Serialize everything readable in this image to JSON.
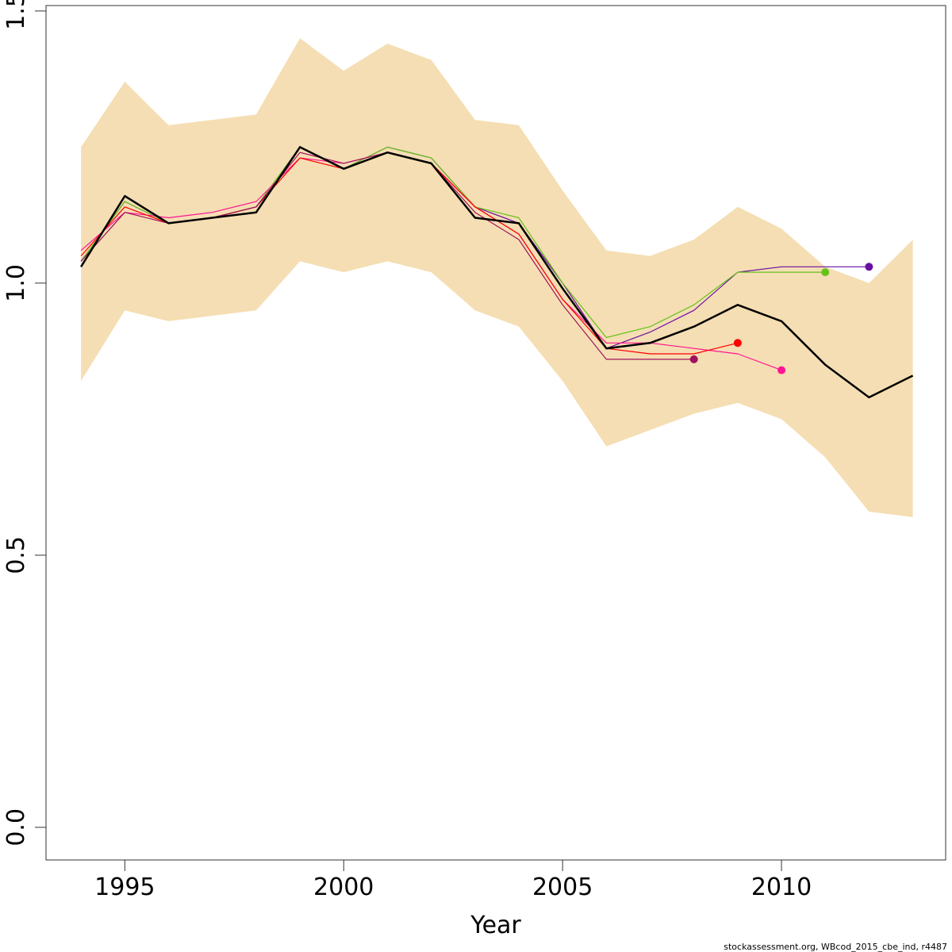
{
  "chart_data": {
    "type": "line",
    "title": "",
    "xlabel": "Year",
    "ylabel": "",
    "xlim": [
      1993.2,
      2013.75
    ],
    "ylim": [
      -0.06,
      1.51
    ],
    "x_ticks": [
      1995,
      2000,
      2005,
      2010
    ],
    "x_tick_labels": [
      "1995",
      "2000",
      "2005",
      "2010"
    ],
    "y_ticks": [
      0.0,
      0.5,
      1.0,
      1.5
    ],
    "y_tick_labels": [
      "0.0",
      "0.5",
      "1.0",
      "1.5"
    ],
    "grid": false,
    "legend": "none",
    "band": {
      "color": "#f5deb3",
      "x": [
        1994,
        1995,
        1996,
        1997,
        1998,
        1999,
        2000,
        2001,
        2002,
        2003,
        2004,
        2005,
        2006,
        2007,
        2008,
        2009,
        2010,
        2011,
        2012,
        2013
      ],
      "upper": [
        1.25,
        1.37,
        1.29,
        1.3,
        1.31,
        1.45,
        1.39,
        1.44,
        1.41,
        1.3,
        1.29,
        1.17,
        1.06,
        1.05,
        1.08,
        1.14,
        1.1,
        1.03,
        1.0,
        1.08
      ],
      "lower": [
        0.82,
        0.95,
        0.93,
        0.94,
        0.95,
        1.04,
        1.02,
        1.04,
        1.02,
        0.95,
        0.92,
        0.82,
        0.7,
        0.73,
        0.76,
        0.78,
        0.75,
        0.68,
        0.58,
        0.57
      ]
    },
    "series": [
      {
        "color": "#000000",
        "width": 2.5,
        "x": [
          1994,
          1995,
          1996,
          1997,
          1998,
          1999,
          2000,
          2001,
          2002,
          2003,
          2004,
          2005,
          2006,
          2007,
          2008,
          2009,
          2010,
          2011,
          2012,
          2013
        ],
        "values": [
          1.03,
          1.16,
          1.11,
          1.12,
          1.13,
          1.25,
          1.21,
          1.24,
          1.22,
          1.12,
          1.11,
          0.99,
          0.88,
          0.89,
          0.92,
          0.96,
          0.93,
          0.85,
          0.79,
          0.83
        ],
        "end_point": false
      },
      {
        "color": "#6b0fa3",
        "width": 1.2,
        "x": [
          1994,
          1995,
          1996,
          1997,
          1998,
          1999,
          2000,
          2001,
          2002,
          2003,
          2004,
          2005,
          2006,
          2007,
          2008,
          2009,
          2010,
          2011,
          2012
        ],
        "values": [
          1.04,
          1.15,
          1.11,
          1.12,
          1.14,
          1.25,
          1.21,
          1.25,
          1.23,
          1.14,
          1.11,
          1.0,
          0.88,
          0.91,
          0.95,
          1.02,
          1.03,
          1.03,
          1.03
        ],
        "end_point": true
      },
      {
        "color": "#66c21a",
        "width": 1.2,
        "x": [
          1994,
          1995,
          1996,
          1997,
          1998,
          1999,
          2000,
          2001,
          2002,
          2003,
          2004,
          2005,
          2006,
          2007,
          2008,
          2009,
          2010,
          2011
        ],
        "values": [
          1.04,
          1.15,
          1.11,
          1.12,
          1.14,
          1.25,
          1.21,
          1.25,
          1.23,
          1.14,
          1.12,
          1.0,
          0.9,
          0.92,
          0.96,
          1.02,
          1.02,
          1.02
        ],
        "end_point": true
      },
      {
        "color": "#ff1493",
        "width": 1.2,
        "x": [
          1994,
          1995,
          1996,
          1997,
          1998,
          1999,
          2000,
          2001,
          2002,
          2003,
          2004,
          2005,
          2006,
          2007,
          2008,
          2009,
          2010
        ],
        "values": [
          1.06,
          1.13,
          1.12,
          1.13,
          1.15,
          1.23,
          1.22,
          1.24,
          1.22,
          1.14,
          1.09,
          0.97,
          0.89,
          0.89,
          0.88,
          0.87,
          0.84
        ],
        "end_point": true
      },
      {
        "color": "#ff0000",
        "width": 1.2,
        "x": [
          1994,
          1995,
          1996,
          1997,
          1998,
          1999,
          2000,
          2001,
          2002,
          2003,
          2004,
          2005,
          2006,
          2007,
          2008,
          2009
        ],
        "values": [
          1.05,
          1.14,
          1.11,
          1.12,
          1.14,
          1.23,
          1.21,
          1.24,
          1.22,
          1.14,
          1.09,
          0.97,
          0.88,
          0.87,
          0.87,
          0.89
        ],
        "end_point": true
      },
      {
        "color": "#a0125c",
        "width": 1.2,
        "x": [
          1994,
          1995,
          1996,
          1997,
          1998,
          1999,
          2000,
          2001,
          2002,
          2003,
          2004,
          2005,
          2006,
          2007,
          2008
        ],
        "values": [
          1.04,
          1.13,
          1.11,
          1.12,
          1.14,
          1.24,
          1.22,
          1.24,
          1.22,
          1.13,
          1.08,
          0.96,
          0.86,
          0.86,
          0.86
        ],
        "end_point": true
      }
    ]
  },
  "footer": "stockassessment.org, WBcod_2015_cbe_ind, r4487"
}
